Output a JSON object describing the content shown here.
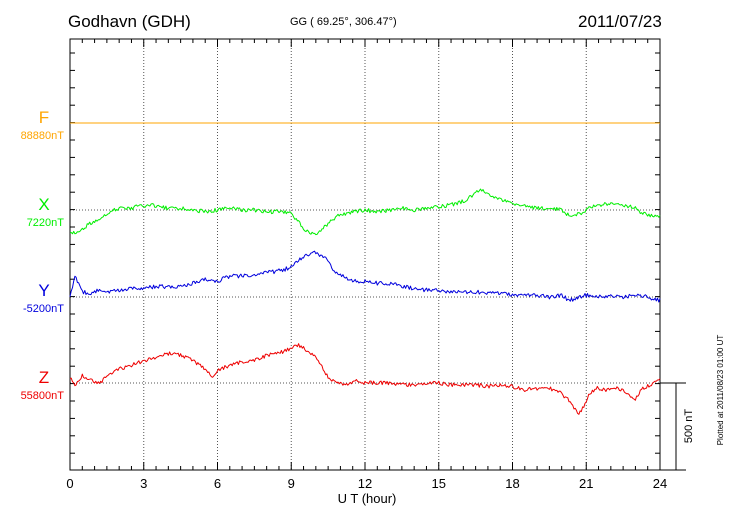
{
  "header": {
    "station": "Godhavn (GDH)",
    "coords": "GG ( 69.25°, 306.47°)",
    "date": "2011/07/23"
  },
  "side_note": "Plotted at 2011/08/23 01:00 UT",
  "scale_label": "500 nT",
  "colors": {
    "F": "#ffa500",
    "X": "#00ee00",
    "Y": "#0000dd",
    "Z": "#ee0000"
  },
  "chart_data": {
    "type": "line",
    "title": "Godhavn (GDH)",
    "xlabel": "U T (hour)",
    "xlim": [
      0,
      24
    ],
    "x_ticks": [
      "0",
      "3",
      "6",
      "9",
      "12",
      "15",
      "18",
      "21",
      "24"
    ],
    "grid": true,
    "scale_bar_nT": 500,
    "series": [
      {
        "name": "F",
        "baseline_label": "88880nT",
        "baseline": 88880,
        "x": [
          0,
          24
        ],
        "values": [
          88880,
          88880
        ]
      },
      {
        "name": "X",
        "baseline_label": "7220nT",
        "baseline": 7220,
        "x": [
          0,
          0.2,
          0.5,
          0.8,
          1.2,
          1.6,
          2,
          2.4,
          2.8,
          3.2,
          3.6,
          4,
          4.5,
          5,
          5.5,
          6,
          6.5,
          7,
          7.5,
          8,
          8.5,
          9,
          9.3,
          9.6,
          9.9,
          10.2,
          10.5,
          10.8,
          11.2,
          11.6,
          12,
          12.5,
          13,
          13.5,
          14,
          14.5,
          15,
          15.5,
          16,
          16.5,
          16.8,
          17.1,
          17.5,
          17.9,
          18.3,
          18.7,
          19,
          19.5,
          20,
          20.3,
          20.6,
          20.9,
          21.2,
          21.6,
          22,
          22.5,
          23,
          23.3,
          23.6,
          24
        ],
        "values": [
          7080,
          7090,
          7110,
          7140,
          7170,
          7210,
          7230,
          7230,
          7240,
          7250,
          7240,
          7230,
          7230,
          7220,
          7210,
          7220,
          7230,
          7220,
          7220,
          7210,
          7210,
          7200,
          7150,
          7100,
          7080,
          7100,
          7140,
          7180,
          7200,
          7210,
          7220,
          7210,
          7220,
          7230,
          7220,
          7230,
          7240,
          7250,
          7270,
          7320,
          7340,
          7300,
          7280,
          7260,
          7240,
          7240,
          7230,
          7230,
          7220,
          7190,
          7190,
          7210,
          7240,
          7250,
          7260,
          7250,
          7230,
          7200,
          7190,
          7180
        ]
      },
      {
        "name": "Y",
        "baseline_label": "-5200nT",
        "baseline": -5200,
        "x": [
          0,
          0.2,
          0.5,
          0.8,
          1.2,
          1.6,
          2,
          2.5,
          3,
          3.5,
          4,
          4.5,
          5,
          5.5,
          6,
          6.5,
          7,
          7.5,
          8,
          8.5,
          9,
          9.3,
          9.6,
          10,
          10.4,
          10.8,
          11.2,
          11.6,
          12,
          12.5,
          13,
          13.5,
          14,
          14.5,
          15,
          15.5,
          16,
          16.5,
          17,
          17.5,
          18,
          18.5,
          19,
          19.5,
          20,
          20.3,
          20.6,
          20.9,
          21.2,
          21.6,
          22,
          22.5,
          23,
          23.5,
          24
        ],
        "values": [
          -5190,
          -5080,
          -5170,
          -5180,
          -5160,
          -5170,
          -5160,
          -5150,
          -5150,
          -5140,
          -5140,
          -5140,
          -5120,
          -5100,
          -5110,
          -5080,
          -5080,
          -5070,
          -5060,
          -5050,
          -5030,
          -4990,
          -4960,
          -4940,
          -4980,
          -5060,
          -5090,
          -5110,
          -5110,
          -5120,
          -5120,
          -5140,
          -5150,
          -5160,
          -5160,
          -5170,
          -5170,
          -5170,
          -5180,
          -5180,
          -5190,
          -5190,
          -5190,
          -5200,
          -5190,
          -5220,
          -5210,
          -5190,
          -5190,
          -5200,
          -5190,
          -5200,
          -5190,
          -5200,
          -5220
        ]
      },
      {
        "name": "Z",
        "baseline_label": "55800nT",
        "baseline": 55800,
        "x": [
          0,
          0.2,
          0.5,
          0.8,
          1.2,
          1.6,
          2,
          2.5,
          3,
          3.5,
          4,
          4.5,
          5,
          5.5,
          5.8,
          6.1,
          6.5,
          7,
          7.5,
          8,
          8.5,
          9,
          9.3,
          9.6,
          9.9,
          10.2,
          10.5,
          10.8,
          11.2,
          11.6,
          12,
          12.5,
          13,
          13.5,
          14,
          14.5,
          15,
          15.5,
          16,
          16.5,
          17,
          17.5,
          18,
          18.5,
          19,
          19.5,
          20,
          20.3,
          20.5,
          20.7,
          20.9,
          21.1,
          21.4,
          21.8,
          22.2,
          22.6,
          23,
          23.3,
          23.6,
          24
        ],
        "values": [
          55830,
          55790,
          55840,
          55820,
          55800,
          55850,
          55880,
          55900,
          55930,
          55940,
          55970,
          55960,
          55930,
          55880,
          55830,
          55880,
          55900,
          55920,
          55930,
          55960,
          55970,
          56000,
          56020,
          55990,
          55960,
          55900,
          55830,
          55800,
          55790,
          55810,
          55800,
          55800,
          55800,
          55790,
          55790,
          55800,
          55800,
          55790,
          55790,
          55790,
          55780,
          55790,
          55780,
          55760,
          55770,
          55770,
          55740,
          55700,
          55650,
          55630,
          55660,
          55740,
          55770,
          55760,
          55770,
          55750,
          55710,
          55770,
          55790,
          55820
        ]
      }
    ]
  }
}
